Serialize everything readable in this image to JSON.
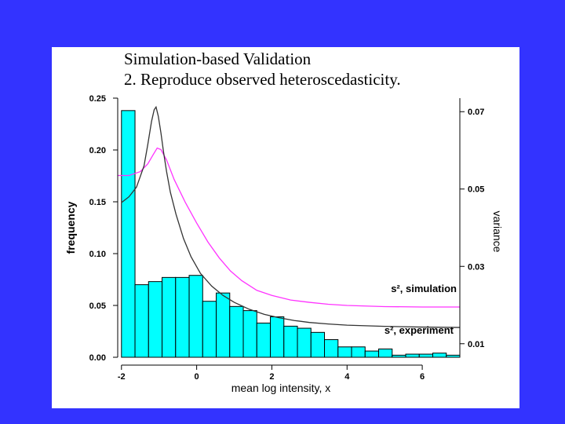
{
  "slide": {
    "title": "Simulation-based Validation",
    "subtitle": "2. Reproduce observed heteroscedasticity.",
    "background_color": "#3333ff"
  },
  "chart_data": {
    "type": "bar",
    "xlabel": "mean log intensity, x",
    "ylabel": "frequency",
    "y2label": "variance",
    "xlim": [
      -2.1,
      7.0
    ],
    "ylim": [
      0,
      0.25
    ],
    "y2lim": [
      0.0065,
      0.0735
    ],
    "x_ticks": [
      -2,
      0,
      2,
      4,
      6
    ],
    "y_ticks": [
      0.0,
      0.05,
      0.1,
      0.15,
      0.2,
      0.25
    ],
    "y_tick_labels": [
      "0.00",
      "0.05",
      "0.10",
      "0.15",
      "0.20",
      "0.25"
    ],
    "y2_ticks": [
      0.01,
      0.03,
      0.05,
      0.07
    ],
    "y2_tick_labels": [
      "0.01",
      "0.03",
      "0.05",
      "0.07"
    ],
    "bar_color": "#00ffff",
    "histogram": {
      "bin_edges": [
        -2.0,
        -1.64,
        -1.28,
        -0.92,
        -0.56,
        -0.2,
        0.16,
        0.52,
        0.88,
        1.24,
        1.6,
        1.96,
        2.32,
        2.68,
        3.04,
        3.4,
        3.76,
        4.12,
        4.48,
        4.84,
        5.2,
        5.56,
        5.92,
        6.28,
        6.64,
        7.0
      ],
      "frequencies": [
        0.238,
        0.07,
        0.073,
        0.077,
        0.077,
        0.079,
        0.054,
        0.062,
        0.049,
        0.045,
        0.033,
        0.039,
        0.03,
        0.028,
        0.024,
        0.017,
        0.01,
        0.01,
        0.006,
        0.008,
        0.002,
        0.003,
        0.003,
        0.004,
        0.002
      ]
    },
    "series": [
      {
        "name": "s², simulation",
        "axis": "right",
        "color": "#ff33ff",
        "x": [
          -2.2,
          -1.8,
          -1.5,
          -1.3,
          -1.15,
          -1.05,
          -0.95,
          -0.8,
          -0.6,
          -0.3,
          0.0,
          0.3,
          0.6,
          0.9,
          1.2,
          1.6,
          2.0,
          2.5,
          3.0,
          3.5,
          4.0,
          5.0,
          6.0,
          7.0
        ],
        "y": [
          0.0535,
          0.0535,
          0.0545,
          0.0565,
          0.059,
          0.0606,
          0.0602,
          0.0575,
          0.0525,
          0.0465,
          0.0412,
          0.0363,
          0.0322,
          0.0288,
          0.0263,
          0.0238,
          0.0225,
          0.0213,
          0.0207,
          0.0202,
          0.0199,
          0.0196,
          0.0195,
          0.0195
        ]
      },
      {
        "name": "s², experiment",
        "axis": "right",
        "color": "#333333",
        "x": [
          -2.0,
          -1.8,
          -1.6,
          -1.4,
          -1.3,
          -1.2,
          -1.13,
          -1.08,
          -1.02,
          -0.95,
          -0.88,
          -0.8,
          -0.7,
          -0.55,
          -0.35,
          -0.15,
          0.1,
          0.4,
          0.7,
          1.0,
          1.4,
          1.8,
          2.2,
          2.6,
          3.0,
          3.5,
          4.0,
          5.0,
          6.0,
          7.0
        ],
        "y": [
          0.0465,
          0.048,
          0.0505,
          0.056,
          0.0615,
          0.0675,
          0.0705,
          0.0712,
          0.0688,
          0.0645,
          0.0595,
          0.0545,
          0.0492,
          0.0435,
          0.0372,
          0.0325,
          0.0282,
          0.0249,
          0.0225,
          0.0207,
          0.0189,
          0.0176,
          0.0167,
          0.016,
          0.0155,
          0.0151,
          0.0148,
          0.0145,
          0.0143,
          0.0142
        ]
      }
    ]
  }
}
